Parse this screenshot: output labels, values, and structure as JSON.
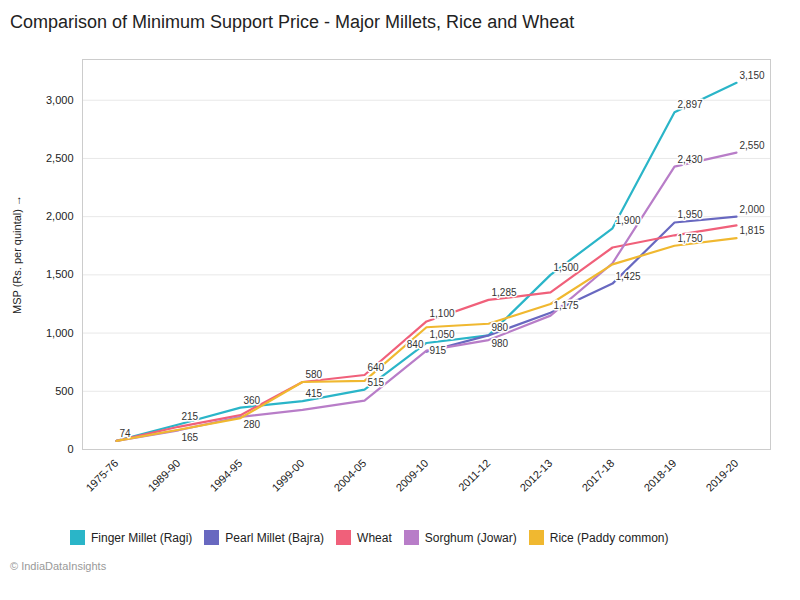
{
  "chart_data": {
    "type": "line",
    "title": "Comparison of Minimum Support Price - Major Millets, Rice and Wheat",
    "ylabel": "MSP (Rs. per quintal)",
    "caption": "© IndiaDataInsights",
    "categories": [
      "1975-76",
      "1989-90",
      "1994-95",
      "1999-00",
      "2004-05",
      "2009-10",
      "2011-12",
      "2012-13",
      "2017-18",
      "2018-19",
      "2019-20"
    ],
    "series": [
      {
        "name": "Finger Millet (Ragi)",
        "color": "#2ab5c8",
        "values": [
          74,
          215,
          360,
          415,
          515,
          915,
          980,
          1500,
          1900,
          2897,
          3150
        ],
        "value_labels": [
          "74",
          "215",
          "360",
          "415",
          "515",
          "915",
          "980",
          "1,500",
          "1,900",
          "2,897",
          "3,150"
        ]
      },
      {
        "name": "Pearl Millet (Bajra)",
        "color": "#6868c0",
        "values": [
          null,
          null,
          null,
          null,
          null,
          840,
          980,
          1175,
          1425,
          1950,
          2000
        ],
        "value_labels": [
          null,
          null,
          null,
          null,
          null,
          "840",
          "980",
          "1,175",
          "1,425",
          "1,950",
          "2,000"
        ]
      },
      {
        "name": "Wheat",
        "color": "#f0607a",
        "values": [
          74,
          195,
          295,
          580,
          640,
          1100,
          1285,
          1350,
          1735,
          1840,
          1925
        ],
        "value_labels": [
          null,
          null,
          null,
          null,
          "640",
          "1,100",
          "1,285",
          null,
          null,
          null,
          null
        ]
      },
      {
        "name": "Sorghum (Jowar)",
        "color": "#b87dc8",
        "values": [
          74,
          165,
          280,
          340,
          420,
          850,
          940,
          1150,
          1600,
          2430,
          2550
        ],
        "value_labels": [
          null,
          "165",
          "280",
          null,
          null,
          null,
          null,
          null,
          null,
          "2,430",
          "2,550"
        ]
      },
      {
        "name": "Rice (Paddy common)",
        "color": "#f0b830",
        "values": [
          74,
          170,
          270,
          580,
          590,
          1050,
          1080,
          1250,
          1590,
          1750,
          1815
        ],
        "value_labels": [
          null,
          null,
          null,
          "580",
          null,
          "1,050",
          null,
          null,
          null,
          "1,750",
          "1,815"
        ]
      }
    ],
    "ylim": [
      0,
      3350
    ],
    "yticks": [
      0,
      500,
      {
        "value": 1000,
        "label": "1,000"
      },
      {
        "value": 1500,
        "label": "1,500"
      },
      {
        "value": 2000,
        "label": "2,000"
      },
      {
        "value": 2500,
        "label": "2,500"
      },
      {
        "value": 3000,
        "label": "3,000"
      }
    ],
    "grid": true,
    "legend": "bottom",
    "data_labels": true
  }
}
